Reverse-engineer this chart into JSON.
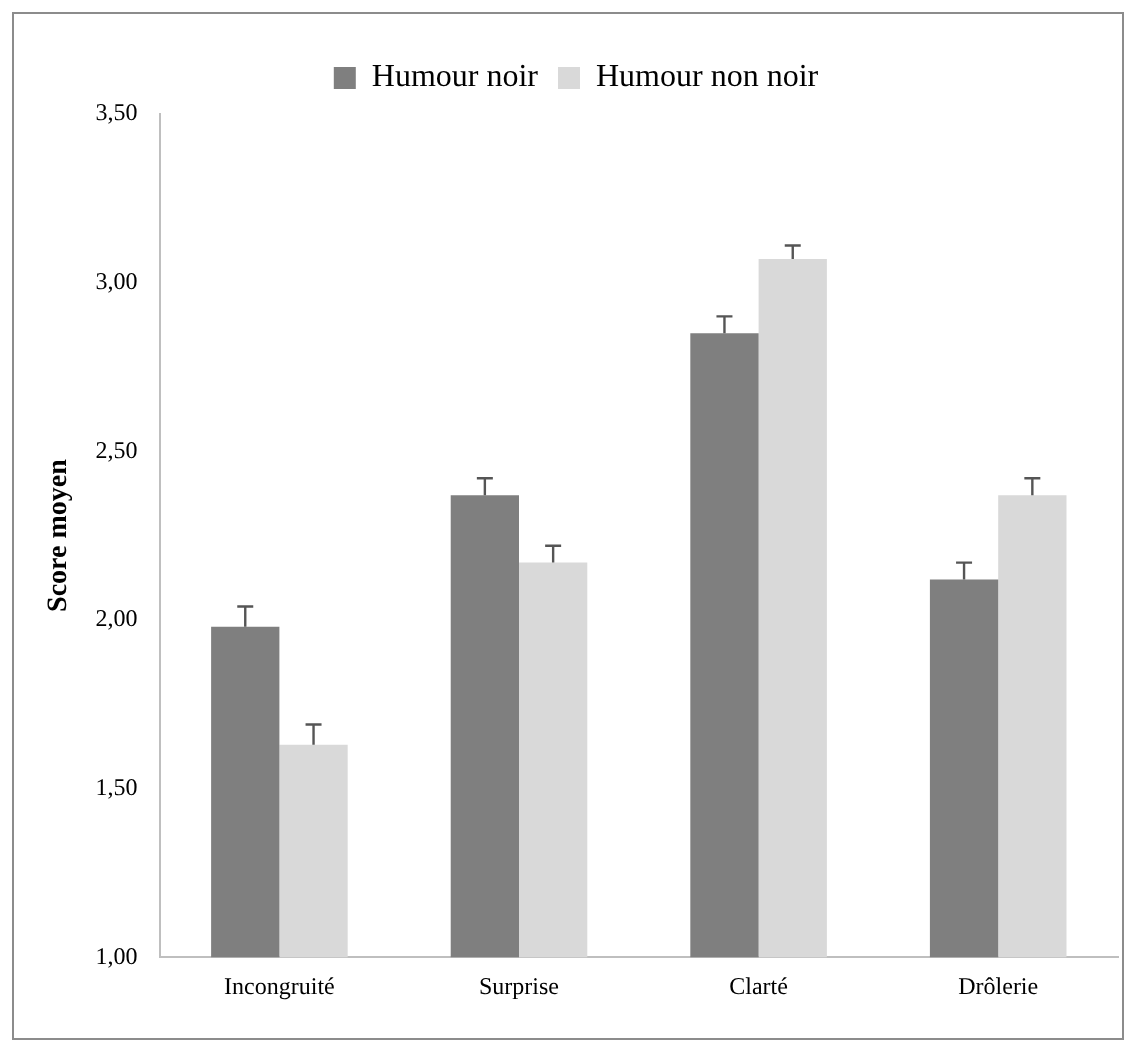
{
  "chart_data": {
    "type": "bar",
    "ylabel": "Score moyen",
    "categories": [
      "Incongruité",
      "Surprise",
      "Clarté",
      "Drôlerie"
    ],
    "series": [
      {
        "name": "Humour noir",
        "color": "#7f7f7f",
        "values": [
          1.98,
          2.37,
          2.85,
          2.12
        ],
        "errors": [
          [
            1.98,
            2.04
          ],
          [
            2.37,
            2.42
          ],
          [
            2.85,
            2.9
          ],
          [
            2.12,
            2.17
          ]
        ]
      },
      {
        "name": "Humour non noir",
        "color": "#d9d9d9",
        "values": [
          1.63,
          2.17,
          3.07,
          2.37
        ],
        "errors": [
          [
            1.63,
            1.69
          ],
          [
            2.17,
            2.22
          ],
          [
            3.07,
            3.11
          ],
          [
            2.37,
            2.42
          ]
        ]
      }
    ],
    "ylim": [
      1,
      3.5
    ],
    "yticks": [
      {
        "value": 1,
        "label": "1,00"
      },
      {
        "value": 1.5,
        "label": "1,50"
      },
      {
        "value": 2,
        "label": "2,00"
      },
      {
        "value": 2.5,
        "label": "2,50"
      },
      {
        "value": 3,
        "label": "3,00"
      },
      {
        "value": 3.5,
        "label": "3,50"
      }
    ],
    "grid": false,
    "legend": "top"
  }
}
